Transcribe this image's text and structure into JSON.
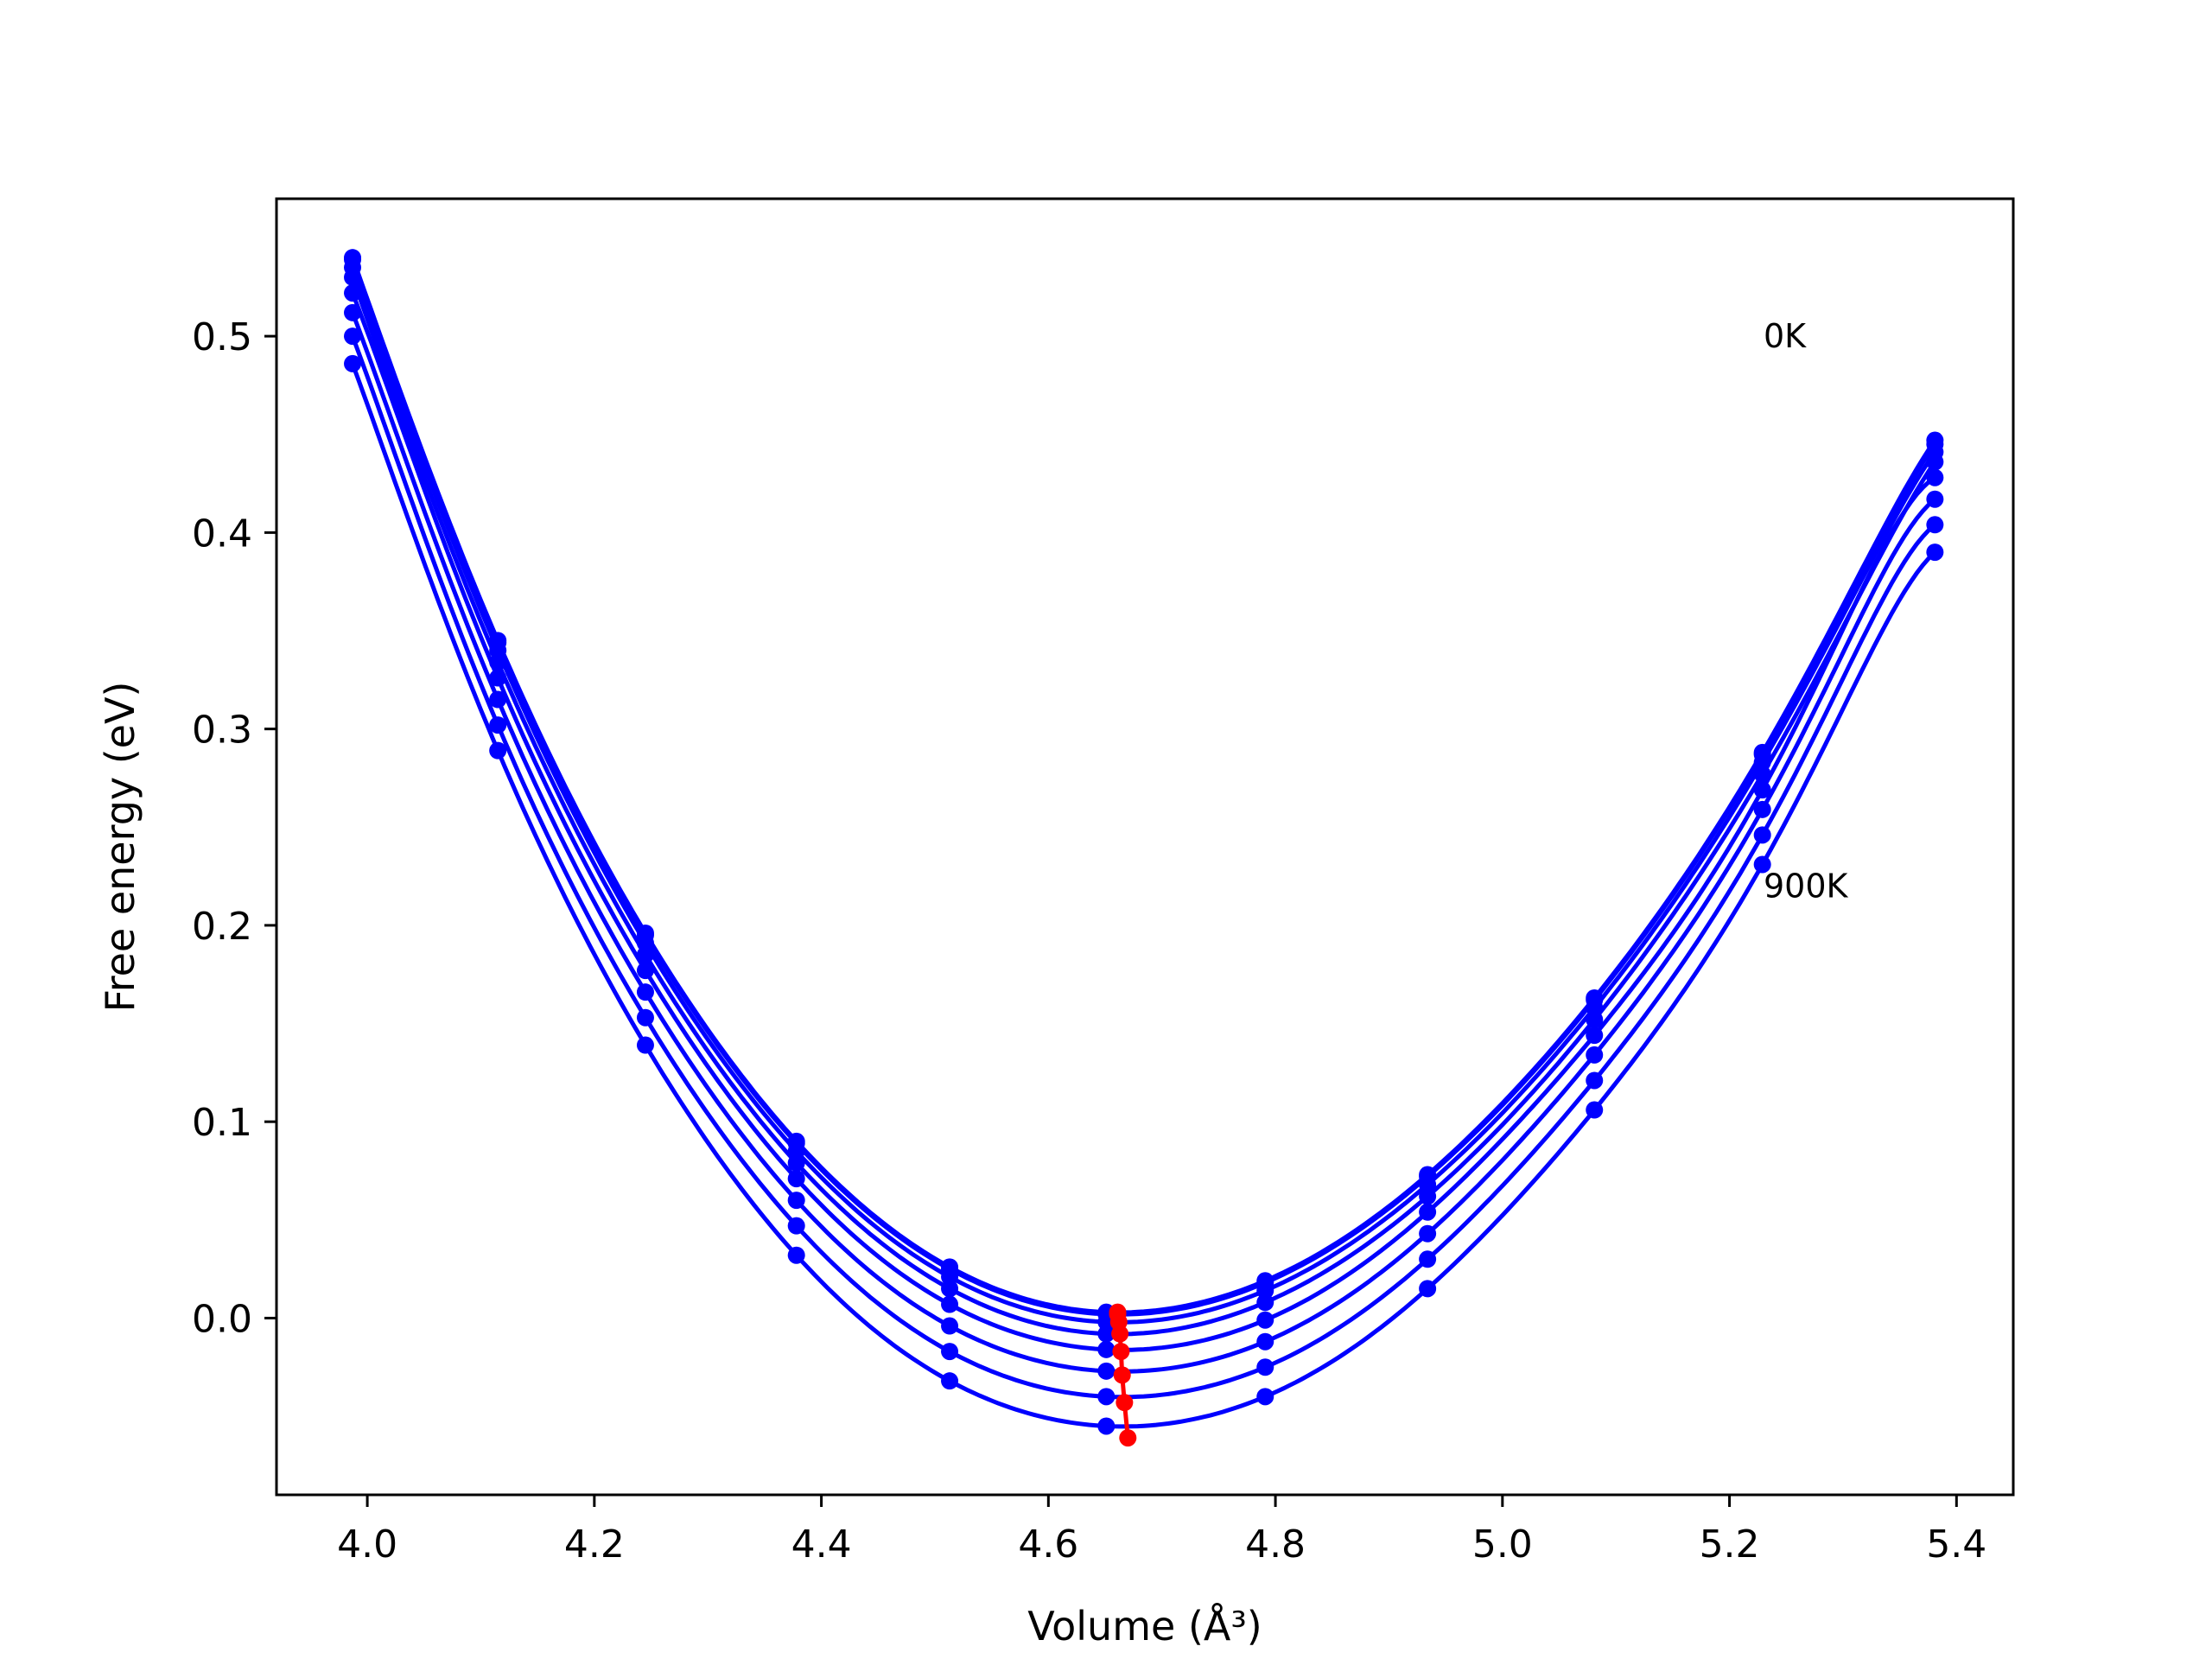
{
  "chart_data": {
    "type": "line",
    "title": "",
    "xlabel": "Volume (Å³)",
    "ylabel": "Free energy (eV)",
    "xlim": [
      3.92,
      5.45
    ],
    "ylim": [
      -0.09,
      0.57
    ],
    "xticks": [
      4.0,
      4.2,
      4.4,
      4.6,
      4.8,
      5.0,
      5.2,
      5.4
    ],
    "yticks": [
      0.0,
      0.1,
      0.2,
      0.3,
      0.4,
      0.5
    ],
    "xtick_labels": [
      "4.0",
      "4.2",
      "4.4",
      "4.6",
      "4.8",
      "5.0",
      "5.2",
      "5.4"
    ],
    "ytick_labels": [
      "0.0",
      "0.1",
      "0.2",
      "0.3",
      "0.4",
      "0.5"
    ],
    "grid": false,
    "legend": "none",
    "annotations": [
      {
        "text": "0K",
        "x": 5.23,
        "y": 0.5
      },
      {
        "text": "900K",
        "x": 5.23,
        "y": 0.22
      }
    ],
    "x": [
      3.987,
      4.115,
      4.245,
      4.378,
      4.513,
      4.651,
      4.791,
      4.934,
      5.081,
      5.229,
      5.381
    ],
    "series": [
      {
        "values": [
          0.54,
          0.345,
          0.196,
          0.09,
          0.026,
          0.003,
          0.019,
          0.073,
          0.163,
          0.288,
          0.447
        ]
      },
      {
        "values": [
          0.539,
          0.344,
          0.195,
          0.089,
          0.025,
          0.002,
          0.018,
          0.072,
          0.162,
          0.287,
          0.445
        ]
      },
      {
        "values": [
          0.535,
          0.34,
          0.191,
          0.085,
          0.021,
          -0.002,
          0.014,
          0.068,
          0.158,
          0.283,
          0.441
        ]
      },
      {
        "values": [
          0.53,
          0.334,
          0.185,
          0.079,
          0.015,
          -0.008,
          0.008,
          0.062,
          0.152,
          0.277,
          0.436
        ]
      },
      {
        "values": [
          0.522,
          0.326,
          0.177,
          0.071,
          0.007,
          -0.016,
          -0.001,
          0.054,
          0.144,
          0.269,
          0.428
        ]
      },
      {
        "values": [
          0.512,
          0.315,
          0.166,
          0.06,
          -0.004,
          -0.027,
          -0.012,
          0.043,
          0.134,
          0.259,
          0.417
        ]
      },
      {
        "values": [
          0.5,
          0.302,
          0.153,
          0.047,
          -0.017,
          -0.04,
          -0.025,
          0.03,
          0.121,
          0.246,
          0.404
        ]
      },
      {
        "values": [
          0.486,
          0.289,
          0.139,
          0.032,
          -0.032,
          -0.055,
          -0.04,
          0.015,
          0.106,
          0.231,
          0.39
        ]
      }
    ],
    "minima": {
      "x": [
        4.661,
        4.661,
        4.662,
        4.663,
        4.664,
        4.665,
        4.667,
        4.67
      ],
      "y": [
        0.003,
        0.002,
        -0.002,
        -0.008,
        -0.017,
        -0.029,
        -0.043,
        -0.061
      ]
    },
    "colors": {
      "curves": "#0000ff",
      "minima": "#ff0000",
      "axes": "#000000"
    }
  }
}
